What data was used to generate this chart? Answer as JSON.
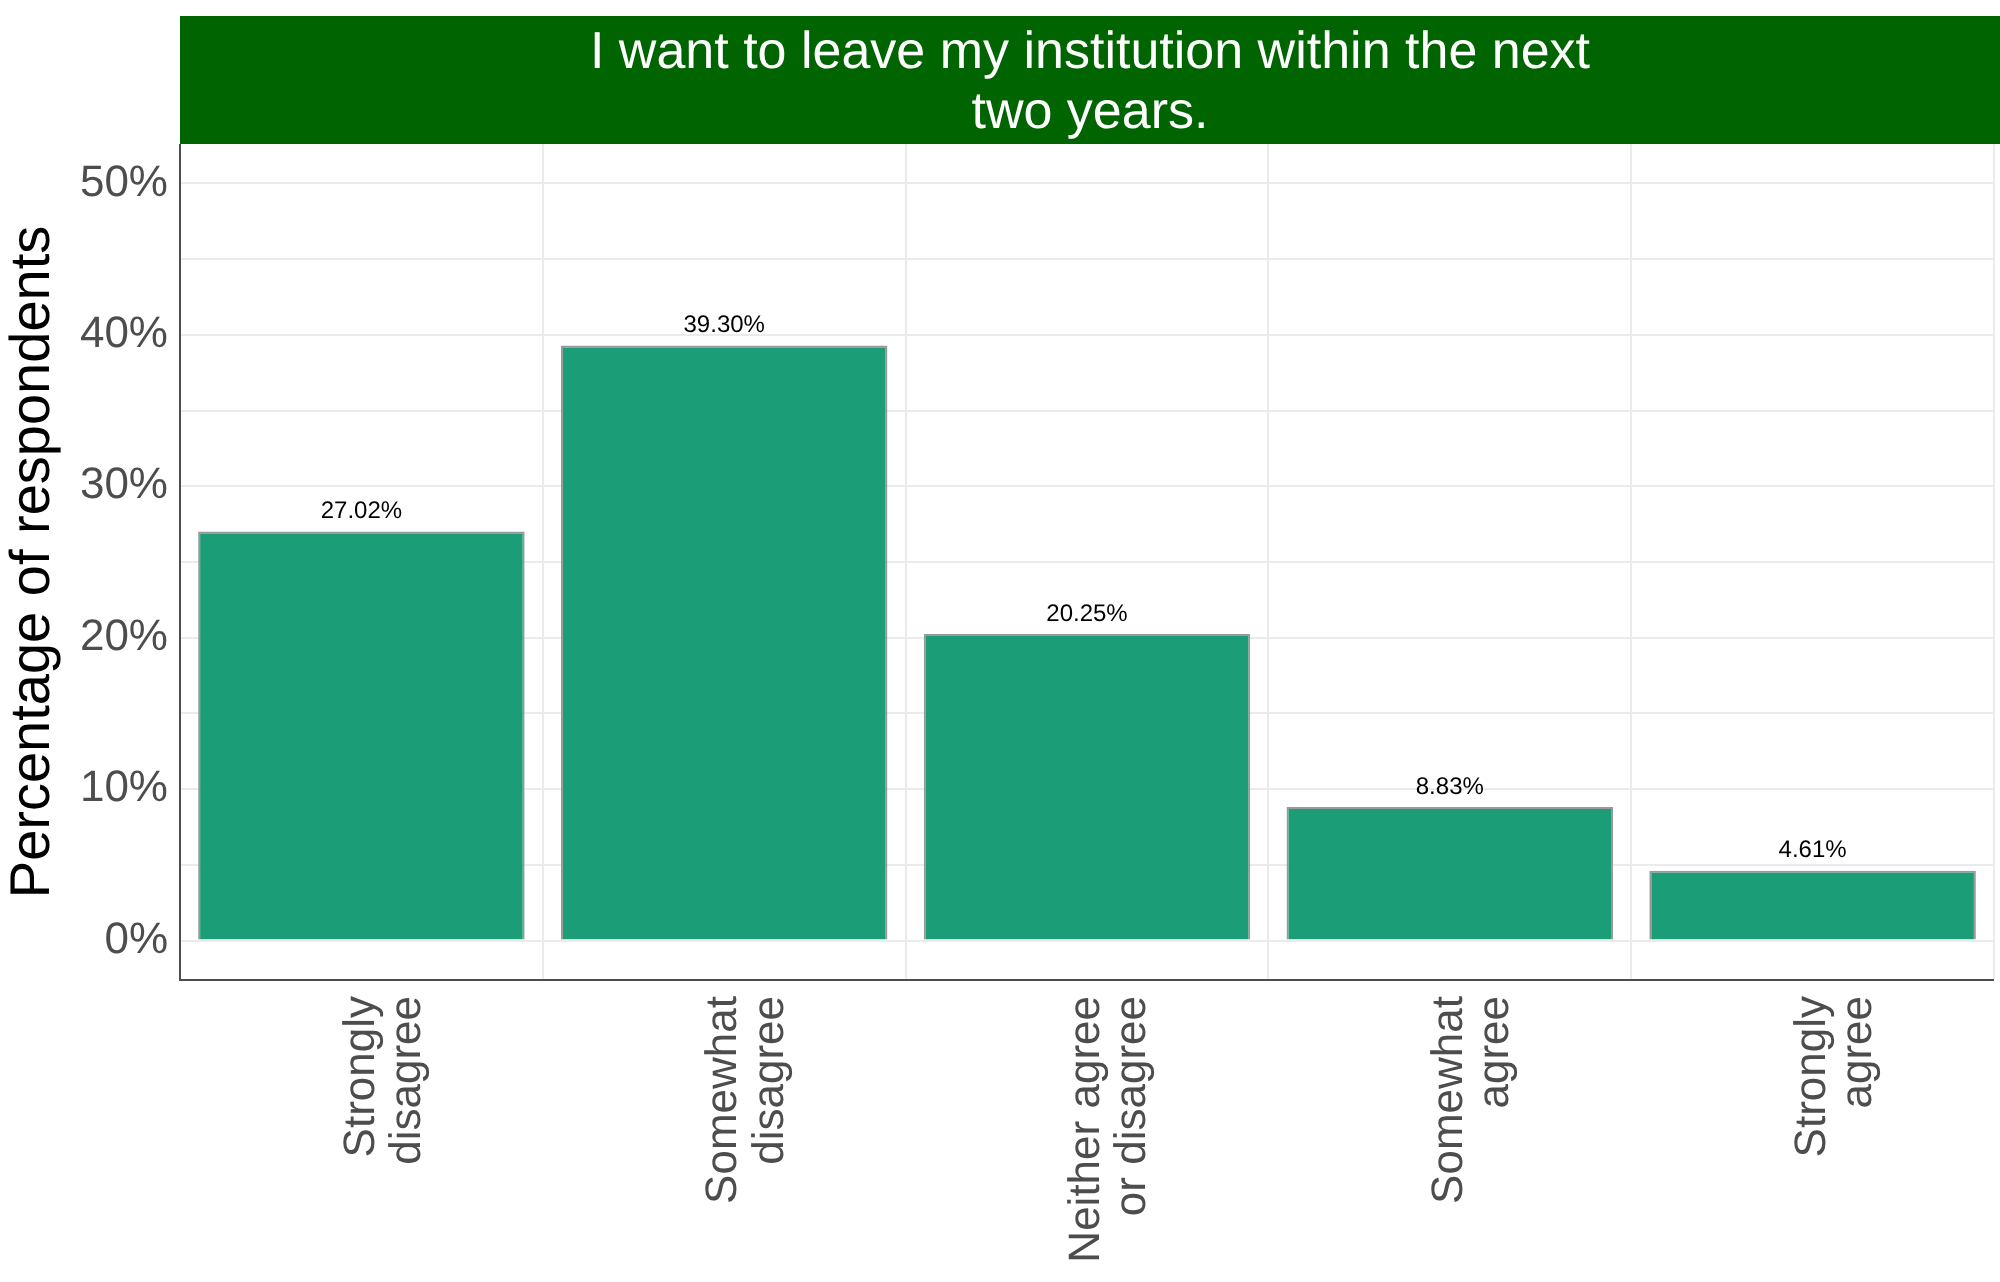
{
  "chart_data": {
    "type": "bar",
    "title": "I want to leave my institution within the next two years.",
    "ylabel": "Percentage of respondents",
    "categories": [
      "Strongly\ndisagree",
      "Somewhat\ndisagree",
      "Neither agree\nor disagree",
      "Somewhat\nagree",
      "Strongly\nagree"
    ],
    "values": [
      27.02,
      39.3,
      20.25,
      8.83,
      4.61
    ],
    "value_labels": [
      "27.02%",
      "39.30%",
      "20.25%",
      "8.83%",
      "4.61%"
    ],
    "color": "#1b9e77",
    "ylim": [
      -2.6,
      52.6
    ],
    "yticks": [
      {
        "value": 0,
        "label": "0%"
      },
      {
        "value": 5,
        "label": null
      },
      {
        "value": 10,
        "label": "10%"
      },
      {
        "value": 15,
        "label": null
      },
      {
        "value": 20,
        "label": "20%"
      },
      {
        "value": 25,
        "label": null
      },
      {
        "value": 30,
        "label": "30%"
      },
      {
        "value": 35,
        "label": null
      },
      {
        "value": 40,
        "label": "40%"
      },
      {
        "value": 45,
        "label": null
      },
      {
        "value": 50,
        "label": "50%"
      }
    ],
    "grid": true
  }
}
